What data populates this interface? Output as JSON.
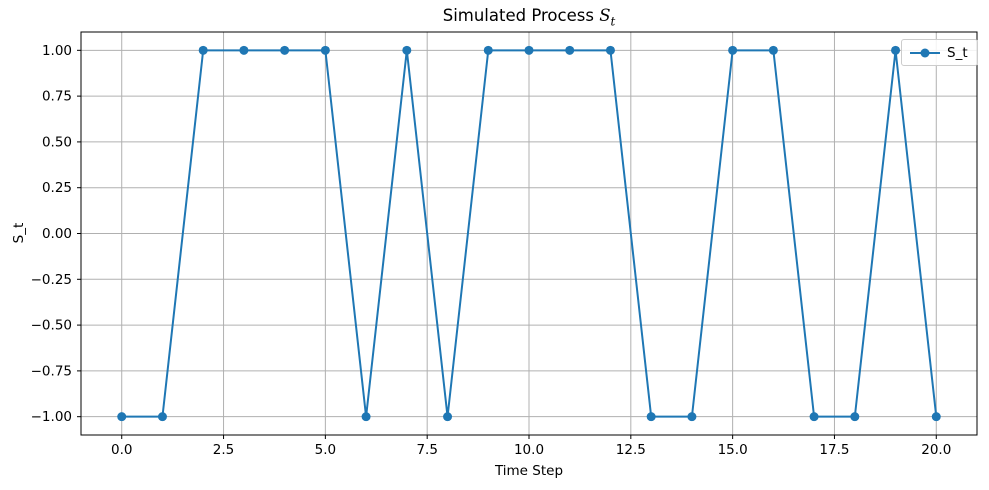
{
  "header": {
    "title_full": "Simulated Process S_t",
    "title_prefix": "Simulated Process ",
    "title_var": "S",
    "title_sub": "t"
  },
  "chart_data": {
    "type": "line",
    "title": "Simulated Process S_t",
    "xlabel": "Time Step",
    "ylabel": "S_t",
    "x": [
      0,
      1,
      2,
      3,
      4,
      5,
      6,
      7,
      8,
      9,
      10,
      11,
      12,
      13,
      14,
      15,
      16,
      17,
      18,
      19,
      20
    ],
    "series": [
      {
        "name": "S_t",
        "values": [
          -1,
          -1,
          1,
          1,
          1,
          1,
          -1,
          1,
          -1,
          1,
          1,
          1,
          1,
          -1,
          -1,
          1,
          1,
          -1,
          -1,
          1,
          -1
        ],
        "color": "#1f77b4",
        "marker": "o"
      }
    ],
    "xlim": [
      -1,
      21
    ],
    "ylim": [
      -1.1,
      1.1
    ],
    "xticks": [
      0,
      2.5,
      5,
      7.5,
      10,
      12.5,
      15,
      17.5,
      20
    ],
    "xtick_labels": [
      "0.0",
      "2.5",
      "5.0",
      "7.5",
      "10.0",
      "12.5",
      "15.0",
      "17.5",
      "20.0"
    ],
    "yticks": [
      -1,
      -0.75,
      -0.5,
      -0.25,
      0,
      0.25,
      0.5,
      0.75,
      1
    ],
    "ytick_labels": [
      "−1.00",
      "−0.75",
      "−0.50",
      "−0.25",
      "0.00",
      "0.25",
      "0.50",
      "0.75",
      "1.00"
    ],
    "grid": true,
    "grid_color": "#b0b0b0",
    "spine_color": "#000000",
    "legend_position": "upper right",
    "legend_entries": [
      "S_t"
    ]
  }
}
